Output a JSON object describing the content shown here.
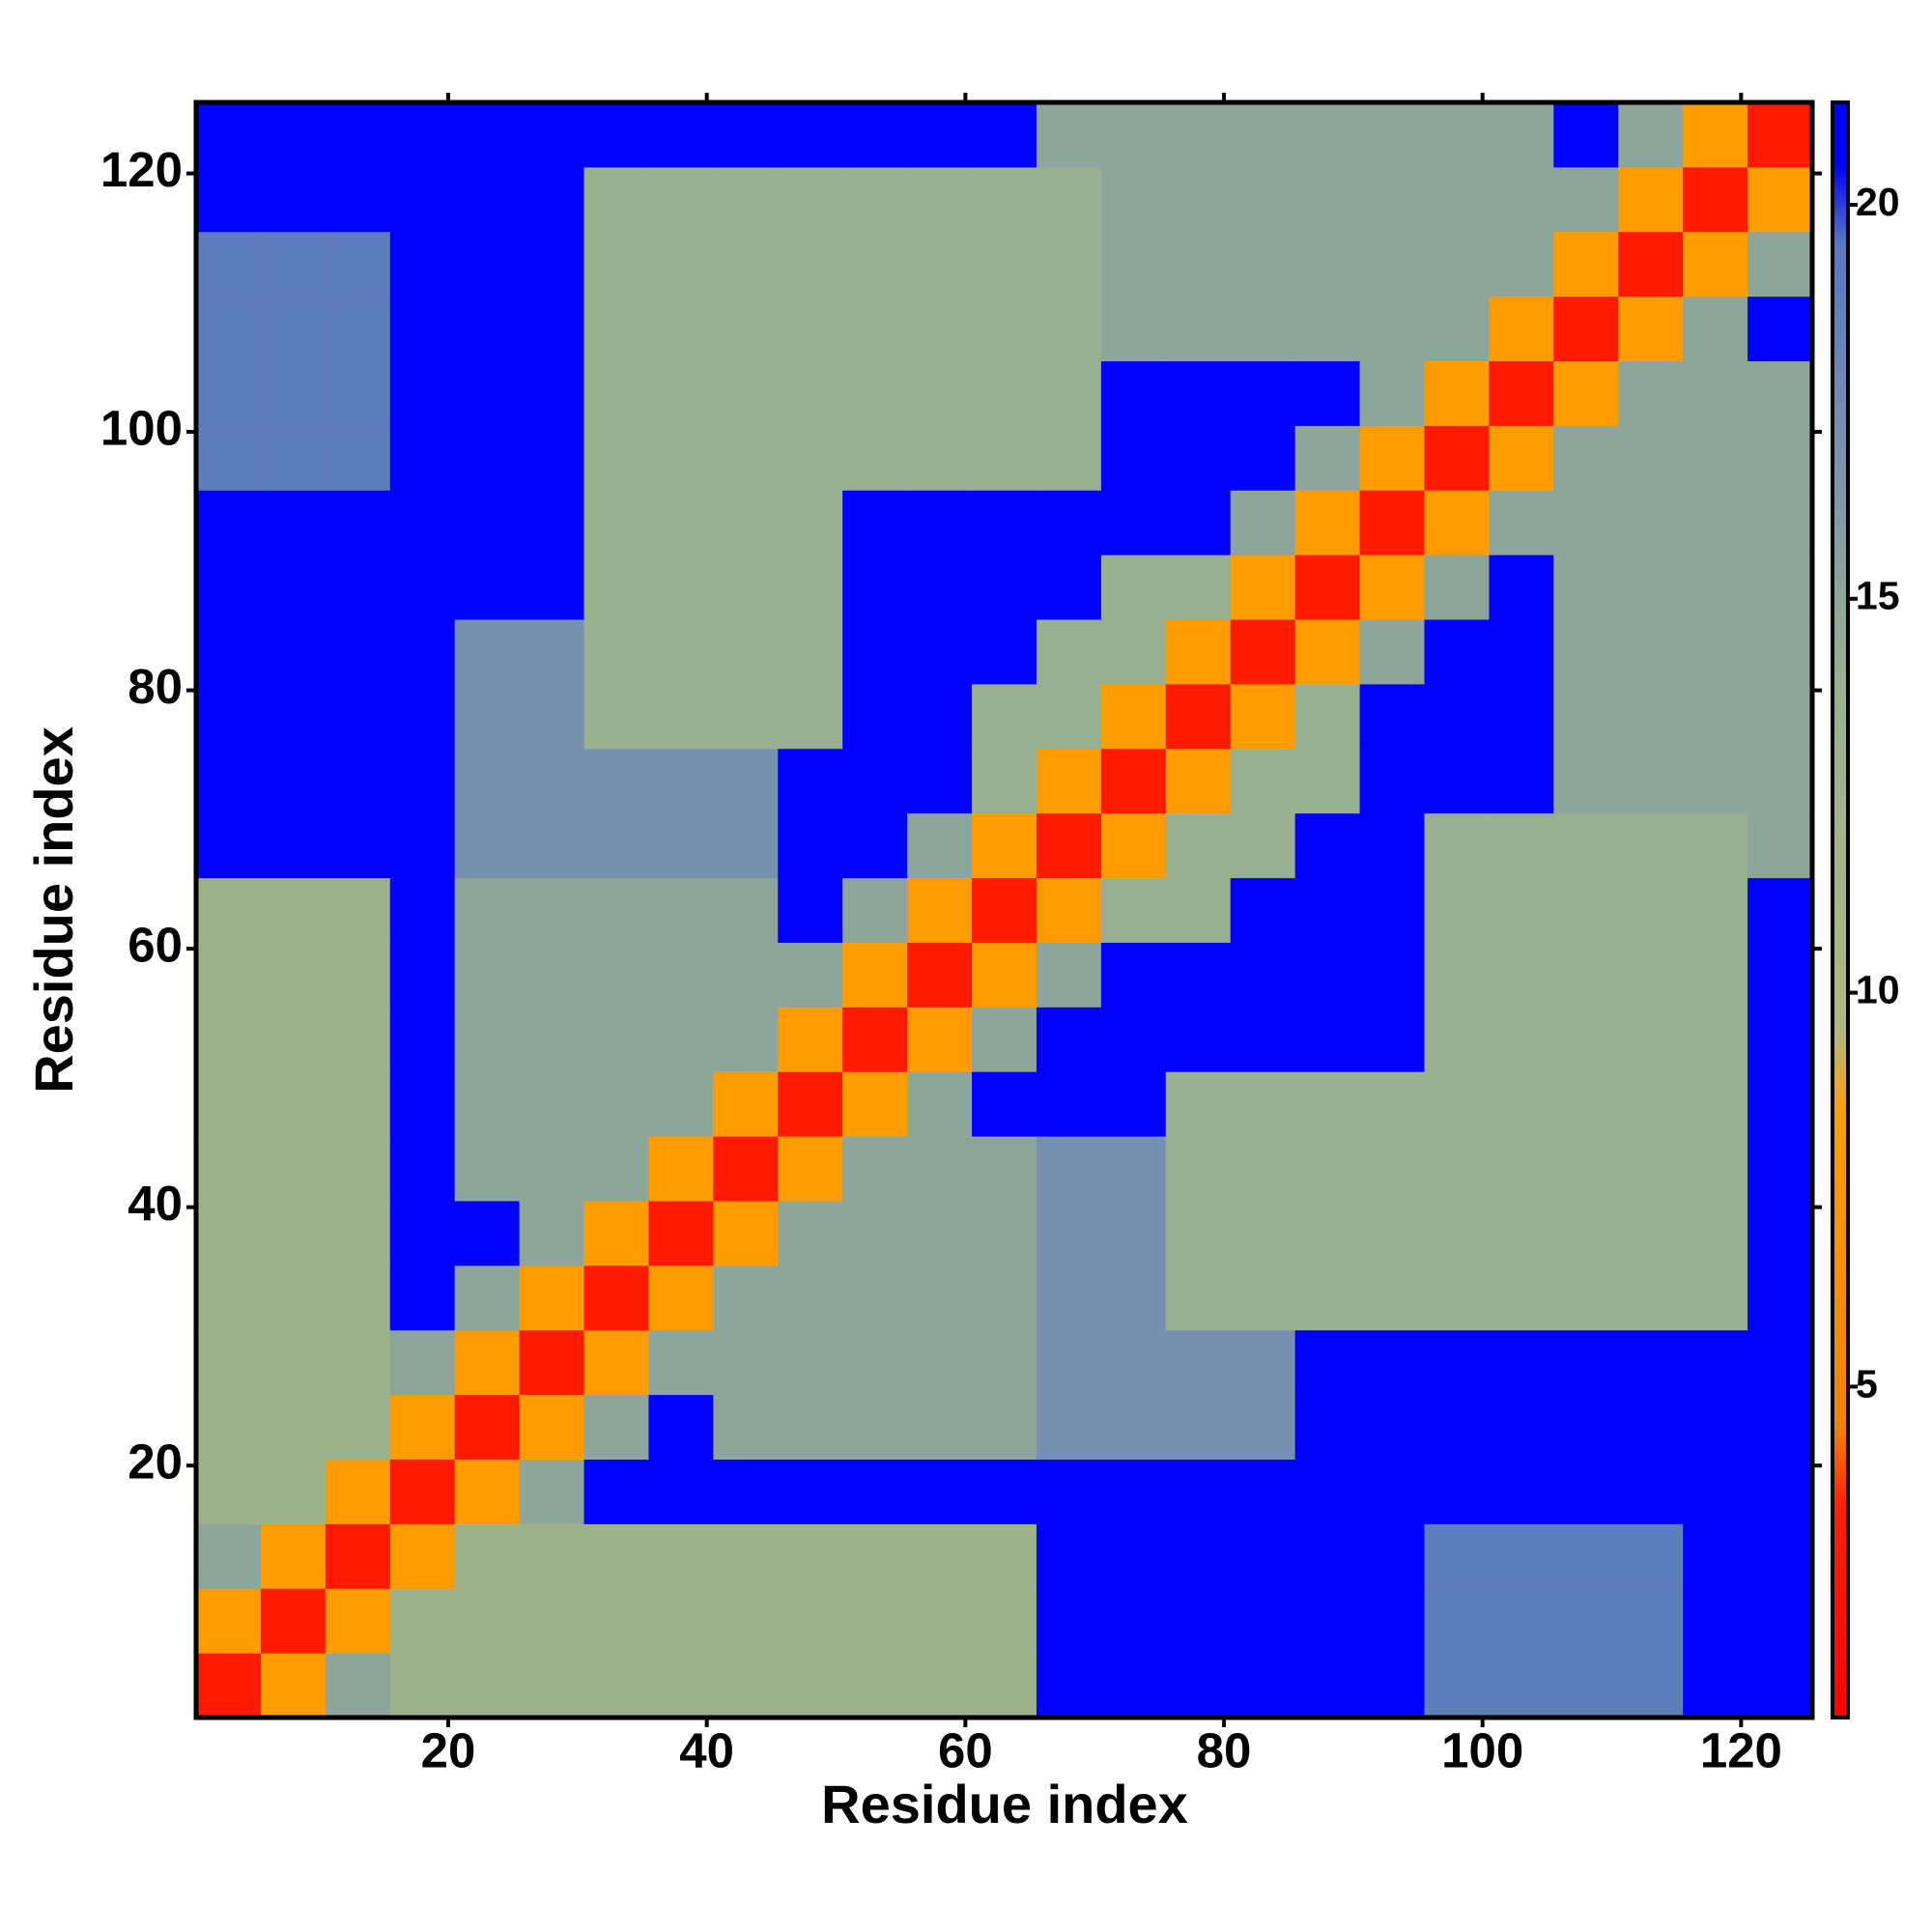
{
  "chart_data": {
    "type": "heatmap",
    "xlabel": "Residue index",
    "ylabel": "Residue index",
    "xbins": [
      0.5,
      5.5,
      10.5,
      15.5,
      20.5,
      25.5,
      30.5,
      35.5,
      40.5,
      45.5,
      50.5,
      55.5,
      60.5,
      65.5,
      70.5,
      75.5,
      80.5,
      85.5,
      90.5,
      95.5,
      100.5,
      105.5,
      110.5,
      115.5,
      120.5,
      125.5
    ],
    "ybins": [
      0.5,
      5.5,
      10.5,
      15.5,
      20.5,
      25.5,
      30.5,
      35.5,
      40.5,
      45.5,
      50.5,
      55.5,
      60.5,
      65.5,
      70.5,
      75.5,
      80.5,
      85.5,
      90.5,
      95.5,
      100.5,
      105.5,
      110.5,
      115.5,
      120.5,
      125.5
    ],
    "xlim": [
      0.5,
      125.5
    ],
    "ylim": [
      0.5,
      125.5
    ],
    "xticks": [
      20,
      40,
      60,
      80,
      100,
      120
    ],
    "yticks": [
      20,
      40,
      60,
      80,
      100,
      120
    ],
    "zlim": [
      0.8,
      21.3
    ],
    "zticks": [
      5,
      10,
      15,
      20
    ],
    "color_stops": [
      {
        "value": 0.8,
        "color": "#ff0000"
      },
      {
        "value": 3.5,
        "color": "#ff2000"
      },
      {
        "value": 4.5,
        "color": "#ff8000"
      },
      {
        "value": 8.5,
        "color": "#ffa000"
      },
      {
        "value": 9.5,
        "color": "#b0b880"
      },
      {
        "value": 14,
        "color": "#98b090"
      },
      {
        "value": 17,
        "color": "#7890b0"
      },
      {
        "value": 19.5,
        "color": "#5878c0"
      },
      {
        "value": 20.5,
        "color": "#0000ff"
      },
      {
        "value": 21.3,
        "color": "#0000ff"
      }
    ],
    "values": [
      [
        3,
        8,
        15,
        13,
        13,
        13,
        13,
        13,
        13,
        13,
        13,
        13,
        13,
        21,
        21,
        21,
        21,
        21,
        21,
        19,
        19,
        19,
        19,
        21,
        21
      ],
      [
        8,
        3,
        8,
        13,
        13,
        13,
        13,
        13,
        13,
        13,
        13,
        13,
        13,
        21,
        21,
        21,
        21,
        21,
        21,
        19,
        19,
        19,
        19,
        21,
        21
      ],
      [
        15,
        8,
        3,
        8,
        13,
        13,
        13,
        13,
        13,
        13,
        13,
        13,
        13,
        21,
        21,
        21,
        21,
        21,
        21,
        19,
        19,
        19,
        19,
        21,
        21
      ],
      [
        13,
        13,
        8,
        3,
        8,
        15,
        21,
        21,
        21,
        21,
        21,
        21,
        21,
        21,
        21,
        21,
        21,
        21,
        21,
        21,
        21,
        21,
        21,
        21,
        21
      ],
      [
        13,
        13,
        13,
        8,
        3,
        8,
        15,
        21,
        15,
        15,
        15,
        15,
        15,
        17,
        17,
        17,
        17,
        21,
        21,
        21,
        21,
        21,
        21,
        21,
        21
      ],
      [
        13,
        13,
        13,
        15,
        8,
        3,
        8,
        15,
        15,
        15,
        15,
        15,
        15,
        17,
        17,
        17,
        17,
        21,
        21,
        21,
        21,
        21,
        21,
        21,
        21
      ],
      [
        13,
        13,
        13,
        21,
        15,
        8,
        3,
        8,
        15,
        15,
        15,
        15,
        15,
        17,
        17,
        14,
        14,
        14,
        14,
        14,
        14,
        14,
        14,
        14,
        21
      ],
      [
        13,
        13,
        13,
        21,
        21,
        15,
        8,
        3,
        8,
        15,
        15,
        15,
        15,
        17,
        17,
        14,
        14,
        14,
        14,
        14,
        14,
        14,
        14,
        14,
        21
      ],
      [
        13,
        13,
        13,
        21,
        15,
        15,
        15,
        8,
        3,
        8,
        15,
        15,
        15,
        17,
        17,
        14,
        14,
        14,
        14,
        14,
        14,
        14,
        14,
        14,
        21
      ],
      [
        13,
        13,
        13,
        21,
        15,
        15,
        15,
        15,
        8,
        3,
        8,
        15,
        21,
        21,
        21,
        14,
        14,
        14,
        14,
        14,
        14,
        14,
        14,
        14,
        21
      ],
      [
        13,
        13,
        13,
        21,
        15,
        15,
        15,
        15,
        15,
        8,
        3,
        8,
        15,
        21,
        21,
        21,
        21,
        21,
        21,
        14,
        14,
        14,
        14,
        14,
        21
      ],
      [
        13,
        13,
        13,
        21,
        15,
        15,
        15,
        15,
        15,
        15,
        8,
        3,
        8,
        15,
        21,
        21,
        21,
        21,
        21,
        14,
        14,
        14,
        14,
        14,
        21
      ],
      [
        13,
        13,
        13,
        21,
        15,
        15,
        15,
        15,
        15,
        21,
        15,
        8,
        3,
        8,
        14,
        14,
        21,
        21,
        21,
        14,
        14,
        14,
        14,
        14,
        21
      ],
      [
        21,
        21,
        21,
        21,
        17,
        17,
        17,
        17,
        17,
        21,
        21,
        15,
        8,
        3,
        8,
        14,
        14,
        21,
        21,
        14,
        14,
        14,
        14,
        14,
        15
      ],
      [
        21,
        21,
        21,
        21,
        17,
        17,
        17,
        17,
        17,
        21,
        21,
        21,
        14,
        8,
        3,
        8,
        14,
        14,
        21,
        21,
        21,
        15,
        15,
        15,
        15
      ],
      [
        21,
        21,
        21,
        21,
        17,
        17,
        14,
        14,
        14,
        14,
        21,
        21,
        14,
        14,
        8,
        3,
        8,
        14,
        21,
        21,
        21,
        15,
        15,
        15,
        15
      ],
      [
        21,
        21,
        21,
        21,
        17,
        17,
        14,
        14,
        14,
        14,
        21,
        21,
        21,
        14,
        14,
        8,
        3,
        8,
        15,
        21,
        21,
        15,
        15,
        15,
        15
      ],
      [
        21,
        21,
        21,
        21,
        21,
        21,
        14,
        14,
        14,
        14,
        21,
        21,
        21,
        21,
        14,
        14,
        8,
        3,
        8,
        15,
        21,
        15,
        15,
        15,
        15
      ],
      [
        21,
        21,
        21,
        21,
        21,
        21,
        14,
        14,
        14,
        14,
        21,
        21,
        21,
        21,
        21,
        21,
        15,
        8,
        3,
        8,
        15,
        15,
        15,
        15,
        15
      ],
      [
        19,
        19,
        19,
        21,
        21,
        21,
        14,
        14,
        14,
        14,
        14,
        14,
        14,
        14,
        21,
        21,
        21,
        15,
        8,
        3,
        8,
        15,
        15,
        15,
        15
      ],
      [
        19,
        19,
        19,
        21,
        21,
        21,
        14,
        14,
        14,
        14,
        14,
        14,
        14,
        14,
        21,
        21,
        21,
        21,
        15,
        8,
        3,
        8,
        15,
        15,
        15
      ],
      [
        19,
        19,
        19,
        21,
        21,
        21,
        14,
        14,
        14,
        14,
        14,
        14,
        14,
        14,
        15,
        15,
        15,
        15,
        15,
        15,
        8,
        3,
        8,
        15,
        21
      ],
      [
        19,
        19,
        19,
        21,
        21,
        21,
        14,
        14,
        14,
        14,
        14,
        14,
        14,
        14,
        15,
        15,
        15,
        15,
        15,
        15,
        15,
        8,
        3,
        8,
        15
      ],
      [
        21,
        21,
        21,
        21,
        21,
        21,
        14,
        14,
        14,
        14,
        14,
        14,
        14,
        14,
        15,
        15,
        15,
        15,
        15,
        15,
        15,
        15,
        8,
        3,
        8
      ],
      [
        21,
        21,
        21,
        21,
        21,
        21,
        21,
        21,
        21,
        21,
        21,
        21,
        21,
        15,
        15,
        15,
        15,
        15,
        15,
        15,
        15,
        21,
        15,
        8,
        3
      ]
    ]
  }
}
